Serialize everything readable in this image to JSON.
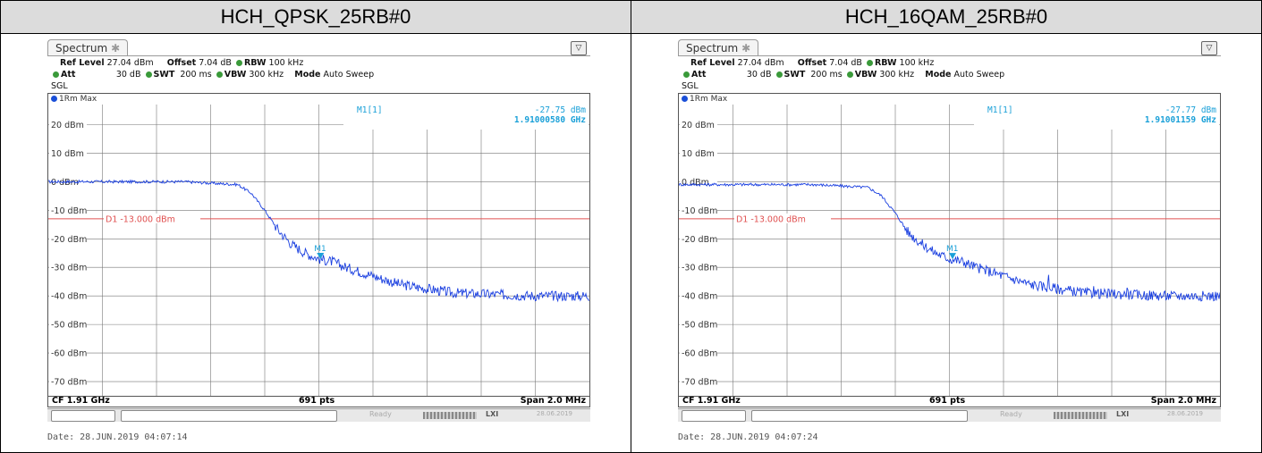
{
  "panels": [
    {
      "title": "HCH_QPSK_25RB#0",
      "tab_label": "Spectrum",
      "ref_level_label": "Ref Level",
      "ref_level_value": "27.04 dBm",
      "offset_label": "Offset",
      "offset_value": "7.04 dB",
      "rbw_label": "RBW",
      "rbw_value": "100 kHz",
      "att_label": "Att",
      "att_value": "30 dB",
      "swt_label": "SWT",
      "swt_value": "200 ms",
      "vbw_label": "VBW",
      "vbw_value": "300 kHz",
      "mode_label": "Mode",
      "mode_value": "Auto Sweep",
      "sgl": "SGL",
      "trace_label": "1Rm Max",
      "marker_label": "M1[1]",
      "marker_value": "-27.75 dBm",
      "marker_freq": "1.91000580 GHz",
      "marker_tag": "M1",
      "display_line_label": "D1  -13.000 dBm",
      "footer_cf": "CF 1.91 GHz",
      "footer_pts": "691 pts",
      "footer_span": "Span 2.0 MHz",
      "status_ready": "Ready",
      "status_lxi": "LXI",
      "status_date": "28.06.2019",
      "date_stamp": "Date: 28.JUN.2019  04:07:14",
      "marker_icon": "triangle-marker-icon",
      "menu_icon": "spectrum-menu-icon"
    },
    {
      "title": "HCH_16QAM_25RB#0",
      "tab_label": "Spectrum",
      "ref_level_label": "Ref Level",
      "ref_level_value": "27.04 dBm",
      "offset_label": "Offset",
      "offset_value": "7.04 dB",
      "rbw_label": "RBW",
      "rbw_value": "100 kHz",
      "att_label": "Att",
      "att_value": "30 dB",
      "swt_label": "SWT",
      "swt_value": "200 ms",
      "vbw_label": "VBW",
      "vbw_value": "300 kHz",
      "mode_label": "Mode",
      "mode_value": "Auto Sweep",
      "sgl": "SGL",
      "trace_label": "1Rm Max",
      "marker_label": "M1[1]",
      "marker_value": "-27.77 dBm",
      "marker_freq": "1.91001159 GHz",
      "marker_tag": "M1",
      "display_line_label": "D1  -13.000 dBm",
      "footer_cf": "CF 1.91 GHz",
      "footer_pts": "691 pts",
      "footer_span": "Span 2.0 MHz",
      "status_ready": "Ready",
      "status_lxi": "LXI",
      "status_date": "28.06.2019",
      "date_stamp": "Date: 28.JUN.2019  04:07:24",
      "marker_icon": "triangle-marker-icon",
      "menu_icon": "spectrum-menu-icon"
    }
  ],
  "y_ticks": [
    "20 dBm",
    "10 dBm",
    "0 dBm",
    "-10 dBm",
    "-20 dBm",
    "-30 dBm",
    "-40 dBm",
    "-50 dBm",
    "-60 dBm",
    "-70 dBm"
  ],
  "colors": {
    "trace": "#1a3fe0",
    "display_line": "#e05050",
    "marker": "#1aa0d8",
    "grid": "#777777"
  },
  "chart_data": [
    {
      "type": "line",
      "y_unit": "dBm",
      "ylim": [
        -75,
        27.04
      ],
      "x_unit": "GHz",
      "xlim": [
        1.909,
        1.911
      ],
      "display_line_dbm": -13.0,
      "marker": {
        "x": 1.9100058,
        "y": -27.75
      },
      "series": [
        {
          "x": [
            1.909,
            1.9095,
            1.9097,
            1.90975,
            1.9098,
            1.90985,
            1.9099,
            1.90995,
            1.91,
            1.91005,
            1.9101,
            1.9102,
            1.9103,
            1.9105,
            1.9108,
            1.911
          ],
          "y": [
            0,
            0,
            -1,
            -4,
            -10,
            -17,
            -22,
            -25,
            -27,
            -28,
            -30,
            -33,
            -36,
            -39,
            -40,
            -40
          ]
        }
      ]
    },
    {
      "type": "line",
      "y_unit": "dBm",
      "ylim": [
        -75,
        27.04
      ],
      "x_unit": "GHz",
      "xlim": [
        1.909,
        1.911
      ],
      "display_line_dbm": -13.0,
      "marker": {
        "x": 1.91001159,
        "y": -27.77
      },
      "series": [
        {
          "x": [
            1.909,
            1.9095,
            1.9097,
            1.90975,
            1.9098,
            1.90985,
            1.9099,
            1.90995,
            1.91,
            1.91005,
            1.9101,
            1.9102,
            1.9103,
            1.9105,
            1.9108,
            1.911
          ],
          "y": [
            -1,
            -1,
            -2,
            -5,
            -11,
            -18,
            -22,
            -25,
            -27,
            -28,
            -30,
            -33,
            -36,
            -39,
            -40,
            -40
          ]
        }
      ]
    }
  ]
}
